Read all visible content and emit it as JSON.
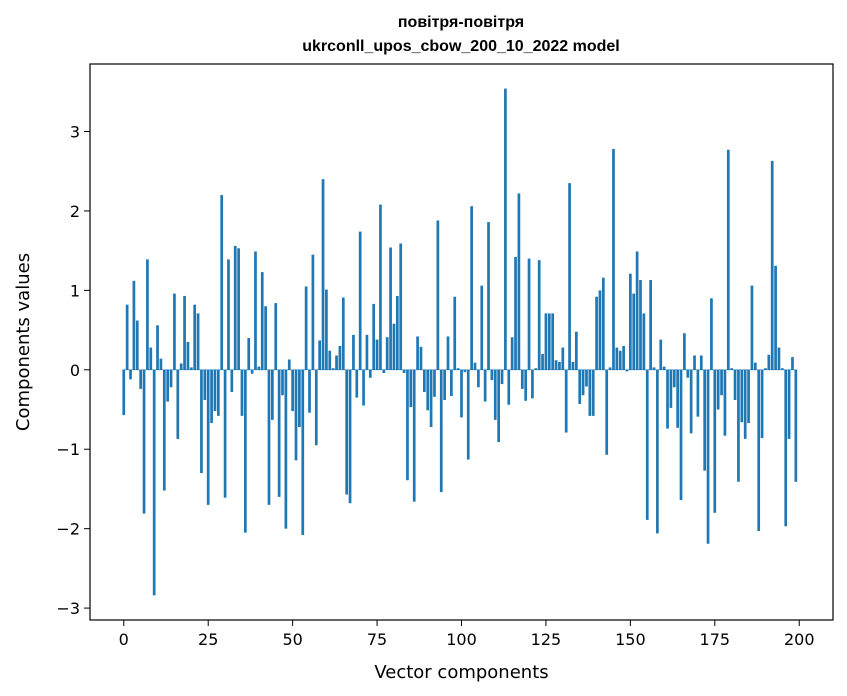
{
  "chart_data": {
    "type": "bar",
    "title_line1": "повітря-повітря",
    "title_line2": "ukrconll_upos_cbow_200_10_2022 model",
    "xlabel": "Vector components",
    "ylabel": "Components values",
    "xlim": [
      -10,
      210
    ],
    "ylim": [
      -3.15,
      3.85
    ],
    "xticks": [
      0,
      25,
      50,
      75,
      100,
      125,
      150,
      175,
      200
    ],
    "xtick_labels": [
      "0",
      "25",
      "50",
      "75",
      "100",
      "125",
      "150",
      "175",
      "200"
    ],
    "yticks": [
      -3,
      -2,
      -1,
      0,
      1,
      2,
      3
    ],
    "ytick_labels": [
      "−3",
      "−2",
      "−1",
      "0",
      "1",
      "2",
      "3"
    ],
    "grid": false,
    "bar_color": "#1f77b4",
    "x_start": 0,
    "values": [
      -0.57,
      0.82,
      -0.12,
      1.12,
      0.62,
      -0.24,
      -1.81,
      1.39,
      0.28,
      -2.84,
      0.56,
      0.14,
      -1.52,
      -0.4,
      -0.22,
      0.96,
      -0.87,
      0.08,
      0.93,
      0.35,
      0.03,
      0.82,
      0.71,
      -1.3,
      -0.38,
      -1.7,
      -0.67,
      -0.52,
      -0.58,
      2.2,
      -1.61,
      1.39,
      -0.28,
      1.56,
      1.53,
      -0.58,
      -2.05,
      0.4,
      -0.05,
      1.49,
      0.04,
      1.23,
      0.8,
      -1.7,
      -0.63,
      0.84,
      -1.6,
      -0.32,
      -2.0,
      0.13,
      -0.52,
      -1.14,
      -0.72,
      -2.08,
      1.05,
      -0.54,
      1.45,
      -0.95,
      0.37,
      2.4,
      1.01,
      0.24,
      0.02,
      0.18,
      0.3,
      0.91,
      -1.57,
      -1.68,
      0.44,
      -0.35,
      1.74,
      -0.45,
      0.44,
      -0.1,
      0.83,
      0.38,
      2.08,
      -0.04,
      0.41,
      1.54,
      0.58,
      0.93,
      1.59,
      -0.04,
      -1.39,
      -0.47,
      -1.66,
      0.42,
      0.29,
      -0.28,
      -0.51,
      -0.72,
      -0.34,
      1.88,
      -1.54,
      -0.38,
      0.42,
      -0.33,
      0.92,
      0.02,
      -0.6,
      -0.03,
      -1.13,
      2.06,
      0.09,
      -0.22,
      1.06,
      -0.4,
      1.86,
      -0.13,
      -0.63,
      -0.91,
      -0.18,
      3.54,
      -0.44,
      0.41,
      1.42,
      2.22,
      -0.24,
      -0.39,
      1.4,
      -0.36,
      0.02,
      1.38,
      0.2,
      0.71,
      0.71,
      0.71,
      0.12,
      0.1,
      0.28,
      -0.79,
      2.35,
      0.1,
      0.48,
      -0.43,
      -0.32,
      -0.21,
      -0.58,
      -0.58,
      0.92,
      1.0,
      1.16,
      -1.07,
      0.03,
      2.78,
      0.28,
      0.24,
      0.3,
      -0.02,
      1.21,
      0.96,
      1.49,
      1.13,
      0.71,
      -1.89,
      1.13,
      0.03,
      -2.06,
      0.38,
      0.04,
      -0.74,
      -0.48,
      -0.22,
      -0.73,
      -1.64,
      0.46,
      -0.1,
      -0.8,
      0.18,
      -0.59,
      0.18,
      -1.27,
      -2.19,
      0.9,
      -1.8,
      -0.5,
      -0.32,
      -0.83,
      2.77,
      0.02,
      -0.38,
      -1.41,
      -0.66,
      -0.87,
      -0.67,
      1.06,
      0.09,
      -2.03,
      -0.86,
      0.02,
      0.19,
      2.63,
      1.31,
      0.28,
      0.02,
      -1.97,
      -0.87,
      0.16,
      -1.41
    ]
  }
}
